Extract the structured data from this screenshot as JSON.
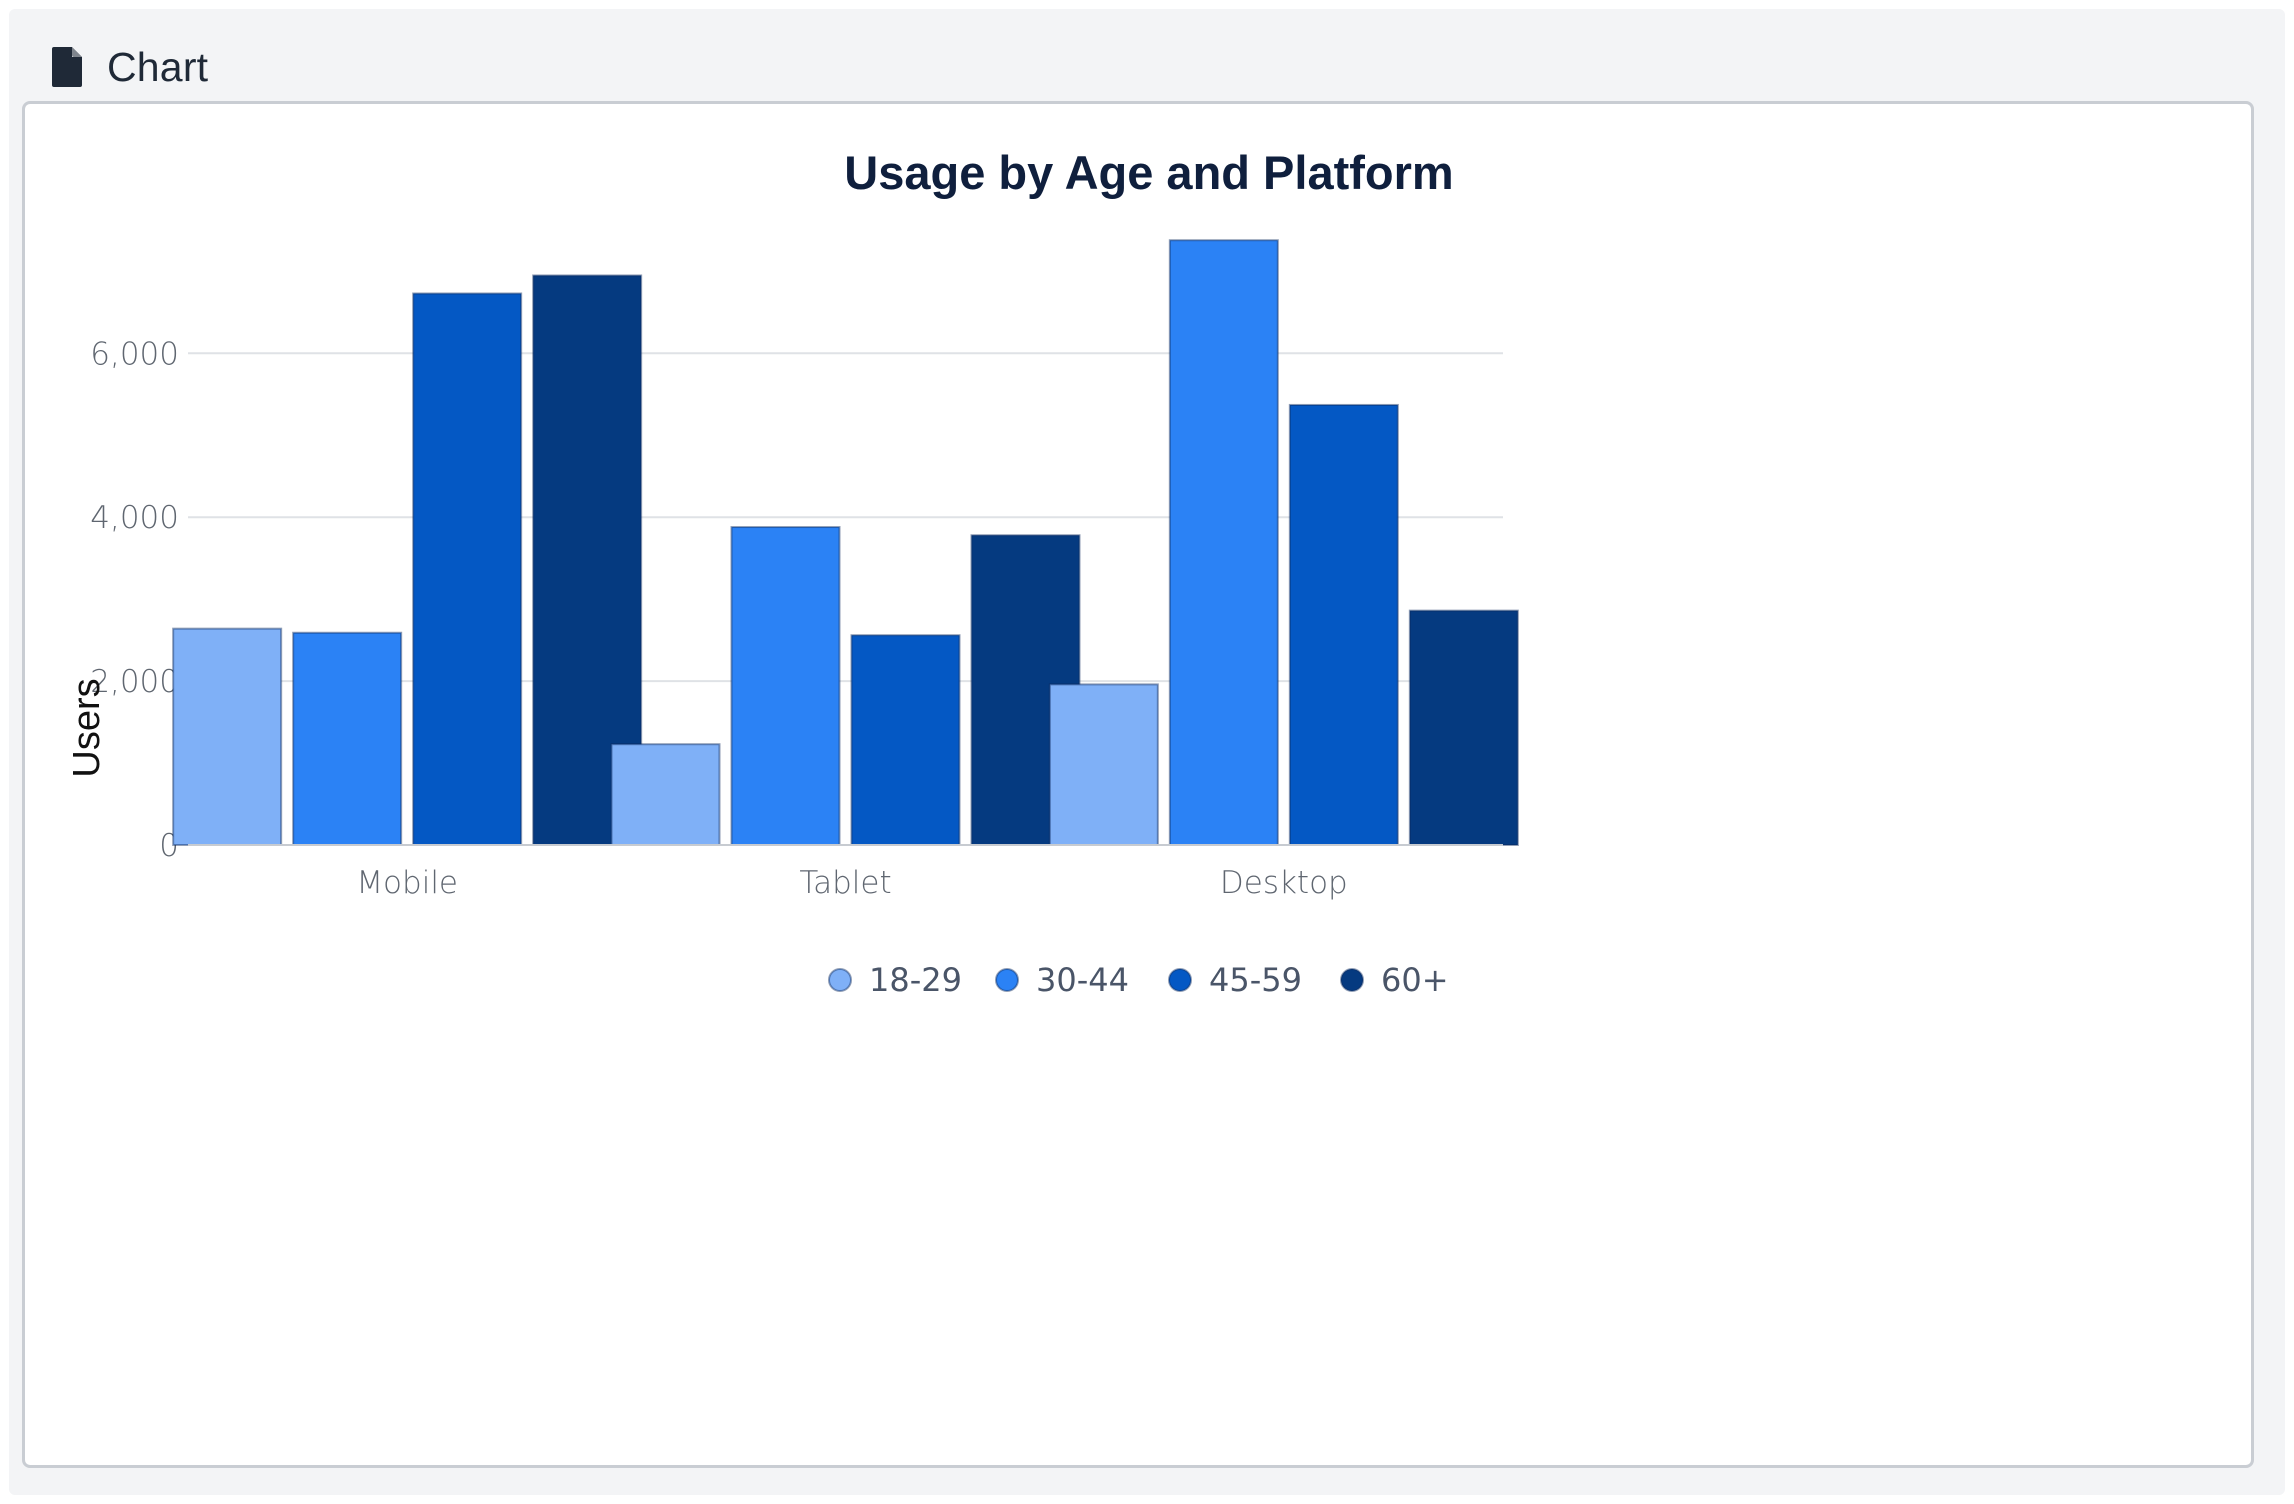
{
  "header": {
    "title": "Chart",
    "icon": "file-icon"
  },
  "colors": {
    "series": [
      "#7fb0f7",
      "#2b82f5",
      "#0458c4",
      "#053a80"
    ],
    "grid": "#dfe2e6",
    "axis": "#c7cbd1"
  },
  "chart_data": {
    "type": "bar",
    "title": "Usage by Age and Platform",
    "xlabel": "",
    "ylabel": "Users",
    "categories": [
      "Mobile",
      "Tablet",
      "Desktop"
    ],
    "series": [
      {
        "name": "18-29",
        "values": [
          2640,
          1230,
          1960
        ]
      },
      {
        "name": "30-44",
        "values": [
          2590,
          3880,
          7380
        ]
      },
      {
        "name": "45-59",
        "values": [
          6730,
          2560,
          5370
        ]
      },
      {
        "name": "60+",
        "values": [
          6950,
          3780,
          2860
        ]
      }
    ],
    "ylim": [
      0,
      7700
    ],
    "yticks": [
      0,
      2000,
      4000,
      6000
    ],
    "ytick_labels": [
      "0",
      "2,000",
      "4,000",
      "6,000"
    ],
    "grid": true,
    "legend_position": "bottom-center"
  }
}
